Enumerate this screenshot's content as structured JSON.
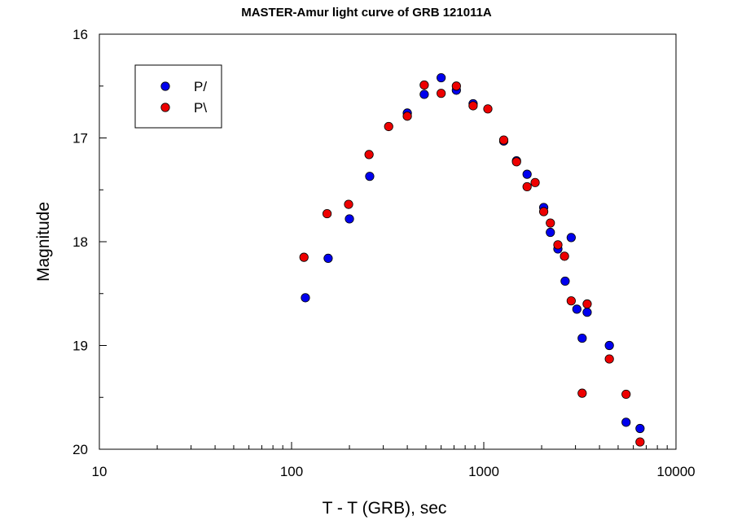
{
  "chart_data": {
    "type": "scatter",
    "title": "MASTER-Amur light curve of GRB 121011A",
    "xlabel": "T - T (GRB), sec",
    "ylabel": "Magnitude",
    "xscale": "log",
    "xlim": [
      10,
      10000
    ],
    "ylim": [
      20,
      16
    ],
    "y_inverted": true,
    "x_ticks": [
      "10",
      "100",
      "1000",
      "10000"
    ],
    "y_ticks": [
      "16",
      "17",
      "18",
      "19",
      "20"
    ],
    "grid": false,
    "legend_position": "top-left",
    "series": [
      {
        "name": "P/",
        "color": "#0000ee",
        "x": [
          118,
          155,
          200,
          255,
          400,
          490,
          600,
          720,
          880,
          1270,
          1480,
          1680,
          2050,
          2220,
          2430,
          2650,
          2850,
          3050,
          3250,
          3450,
          4500,
          5500,
          6500
        ],
        "y": [
          18.54,
          18.16,
          17.78,
          17.37,
          16.76,
          16.58,
          16.42,
          16.54,
          16.67,
          17.03,
          17.22,
          17.35,
          17.67,
          17.91,
          18.07,
          18.38,
          17.96,
          18.65,
          18.93,
          18.68,
          19.0,
          19.74,
          19.8
        ]
      },
      {
        "name": "P\\",
        "color": "#ee0000",
        "x": [
          116,
          153,
          198,
          253,
          320,
          400,
          490,
          600,
          720,
          880,
          1050,
          1270,
          1480,
          1680,
          1850,
          2050,
          2220,
          2430,
          2630,
          2850,
          3250,
          3450,
          4500,
          5500,
          6500
        ],
        "y": [
          18.15,
          17.73,
          17.64,
          17.16,
          16.89,
          16.79,
          16.49,
          16.57,
          16.5,
          16.69,
          16.72,
          17.02,
          17.23,
          17.47,
          17.43,
          17.71,
          17.82,
          18.03,
          18.14,
          18.57,
          19.46,
          18.6,
          19.13,
          19.47,
          19.93
        ]
      }
    ]
  }
}
